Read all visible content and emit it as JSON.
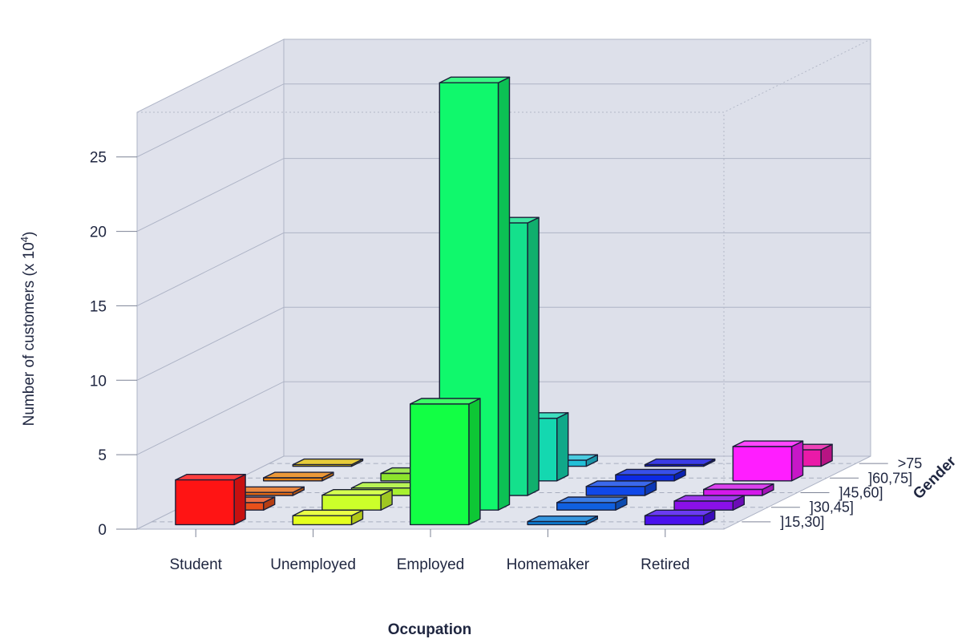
{
  "chart_data": {
    "type": "bar",
    "title": "",
    "xlabel": "Occupation",
    "ylabel_main": "Number of customers (x 10",
    "ylabel_sup": "4",
    "ylabel_end": ")",
    "zlabel": "Gender",
    "ylim": [
      0,
      28
    ],
    "yticks": [
      0,
      5,
      10,
      15,
      20,
      25
    ],
    "categories": [
      "Student",
      "Unemployed",
      "Employed",
      "Homemaker",
      "Retired"
    ],
    "depth_categories": [
      "]15,30]",
      "]30,45]",
      "]45,60]",
      "]60,75]",
      ">75"
    ],
    "grid": true,
    "series": [
      {
        "name": "]15,30]",
        "values": [
          3.0,
          0.6,
          8.1,
          0.2,
          0.6
        ]
      },
      {
        "name": "]30,45]",
        "values": [
          0.5,
          1.0,
          28.7,
          0.5,
          0.6
        ]
      },
      {
        "name": "]45,60]",
        "values": [
          0.2,
          0.5,
          18.3,
          0.6,
          0.4
        ]
      },
      {
        "name": "]60,75]",
        "values": [
          0.2,
          0.5,
          4.2,
          0.4,
          2.3
        ]
      },
      {
        "name": ">75",
        "values": [
          0.1,
          0.1,
          0.4,
          0.1,
          1.1
        ]
      }
    ],
    "colors": [
      [
        "#ff1414",
        "#e8501a",
        "#e46a14",
        "#e8820e",
        "#e0c00e"
      ],
      [
        "#e4ff1e",
        "#ccff2a",
        "#a8f030",
        "#8ce42c",
        "#70d81e"
      ],
      [
        "#12ff44",
        "#10f86c",
        "#14e08c",
        "#14d8b0",
        "#22c0d8"
      ],
      [
        "#0a7fd8",
        "#1060e0",
        "#1048e8",
        "#0c2ae4",
        "#1010e0"
      ],
      [
        "#4a10ee",
        "#8a10e8",
        "#d418ea",
        "#ff1eff",
        "#ea1aa8"
      ]
    ],
    "background": "#dde0ea"
  }
}
